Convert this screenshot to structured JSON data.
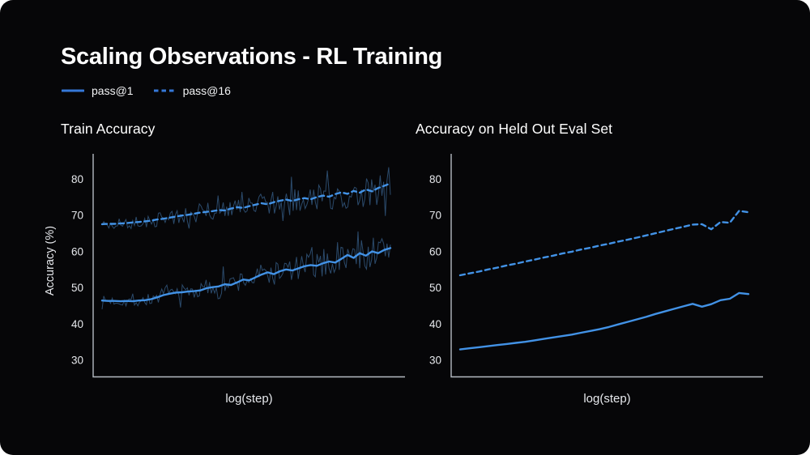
{
  "slide": {
    "title": "Scaling Observations - RL Training"
  },
  "legend": {
    "items": [
      {
        "label": "pass@1",
        "style": "solid"
      },
      {
        "label": "pass@16",
        "style": "dashed"
      }
    ]
  },
  "colors": {
    "slide_background": "#060608",
    "page_background": "#ffffff",
    "accent_blue": "#4292e6",
    "legend_swatch_blue": "#3578d8",
    "raw_trace_blue": "#2b4a6b",
    "axis_line": "#b4bac2",
    "tick_text": "#e6e8ec",
    "title_text": "#ffffff"
  },
  "chart_data": [
    {
      "type": "line",
      "title": "Train Accuracy",
      "xlabel": "log(step)",
      "ylabel": "Accuracy (%)",
      "ylim": [
        25.5,
        86.5
      ],
      "yticks": [
        30,
        40,
        50,
        60,
        70,
        80
      ],
      "xticks": [],
      "x_axis_note": "log-scaled steps, no tick labels shown",
      "grid": false,
      "series": [
        {
          "name": "pass@1",
          "style": "solid",
          "values": [
            46.5,
            46.4,
            46.4,
            46.3,
            46.4,
            46.3,
            46.5,
            46.6,
            46.9,
            47.4,
            48.0,
            48.4,
            48.7,
            48.8,
            49.0,
            49.1,
            49.3,
            49.9,
            50.2,
            50.4,
            51.0,
            50.8,
            51.5,
            52.3,
            52.1,
            52.9,
            53.7,
            54.3,
            53.8,
            54.6,
            55.1,
            54.8,
            55.4,
            56.0,
            56.3,
            56.1,
            56.8,
            57.3,
            57.0,
            58.0,
            59.1,
            58.3,
            59.6,
            58.9,
            60.1,
            59.6,
            60.5,
            61.0
          ]
        },
        {
          "name": "pass@16",
          "style": "dashed",
          "values": [
            67.6,
            67.7,
            67.7,
            67.8,
            67.9,
            68.1,
            68.2,
            68.4,
            68.6,
            68.9,
            69.1,
            69.4,
            69.7,
            70.0,
            70.2,
            70.5,
            70.8,
            71.0,
            71.2,
            71.5,
            71.4,
            71.9,
            72.3,
            72.1,
            72.6,
            73.0,
            73.4,
            73.1,
            73.7,
            74.1,
            74.4,
            74.0,
            74.5,
            74.8,
            74.5,
            75.1,
            75.5,
            75.2,
            75.9,
            76.4,
            76.0,
            76.8,
            76.3,
            77.2,
            76.7,
            77.6,
            78.2,
            78.9
          ]
        }
      ],
      "raw_traces": {
        "visible": true,
        "points": 170,
        "amplitude_start": 1.3,
        "amplitude_end": 4.8,
        "seed": 7
      }
    },
    {
      "type": "line",
      "title": "Accuracy on Held Out Eval Set",
      "xlabel": "log(step)",
      "ylabel": "",
      "ylim": [
        25.5,
        86.5
      ],
      "yticks": [
        30,
        40,
        50,
        60,
        70,
        80
      ],
      "xticks": [],
      "x_axis_note": "log-scaled steps, no tick labels shown",
      "grid": false,
      "series": [
        {
          "name": "pass@1",
          "style": "solid",
          "values": [
            33.0,
            33.3,
            33.6,
            33.9,
            34.2,
            34.5,
            34.8,
            35.1,
            35.5,
            35.9,
            36.3,
            36.7,
            37.1,
            37.6,
            38.1,
            38.6,
            39.2,
            39.9,
            40.6,
            41.3,
            42.0,
            42.8,
            43.5,
            44.2,
            44.9,
            45.6,
            44.8,
            45.5,
            46.6,
            47.0,
            48.6,
            48.3
          ]
        },
        {
          "name": "pass@16",
          "style": "dashed",
          "values": [
            53.5,
            54.0,
            54.5,
            55.1,
            55.6,
            56.2,
            56.7,
            57.3,
            57.8,
            58.4,
            58.9,
            59.5,
            60.0,
            60.6,
            61.1,
            61.7,
            62.2,
            62.8,
            63.3,
            63.9,
            64.5,
            65.1,
            65.7,
            66.3,
            66.9,
            67.5,
            67.6,
            66.2,
            68.2,
            68.0,
            71.3,
            70.9
          ]
        }
      ],
      "raw_traces": {
        "visible": false
      }
    }
  ]
}
